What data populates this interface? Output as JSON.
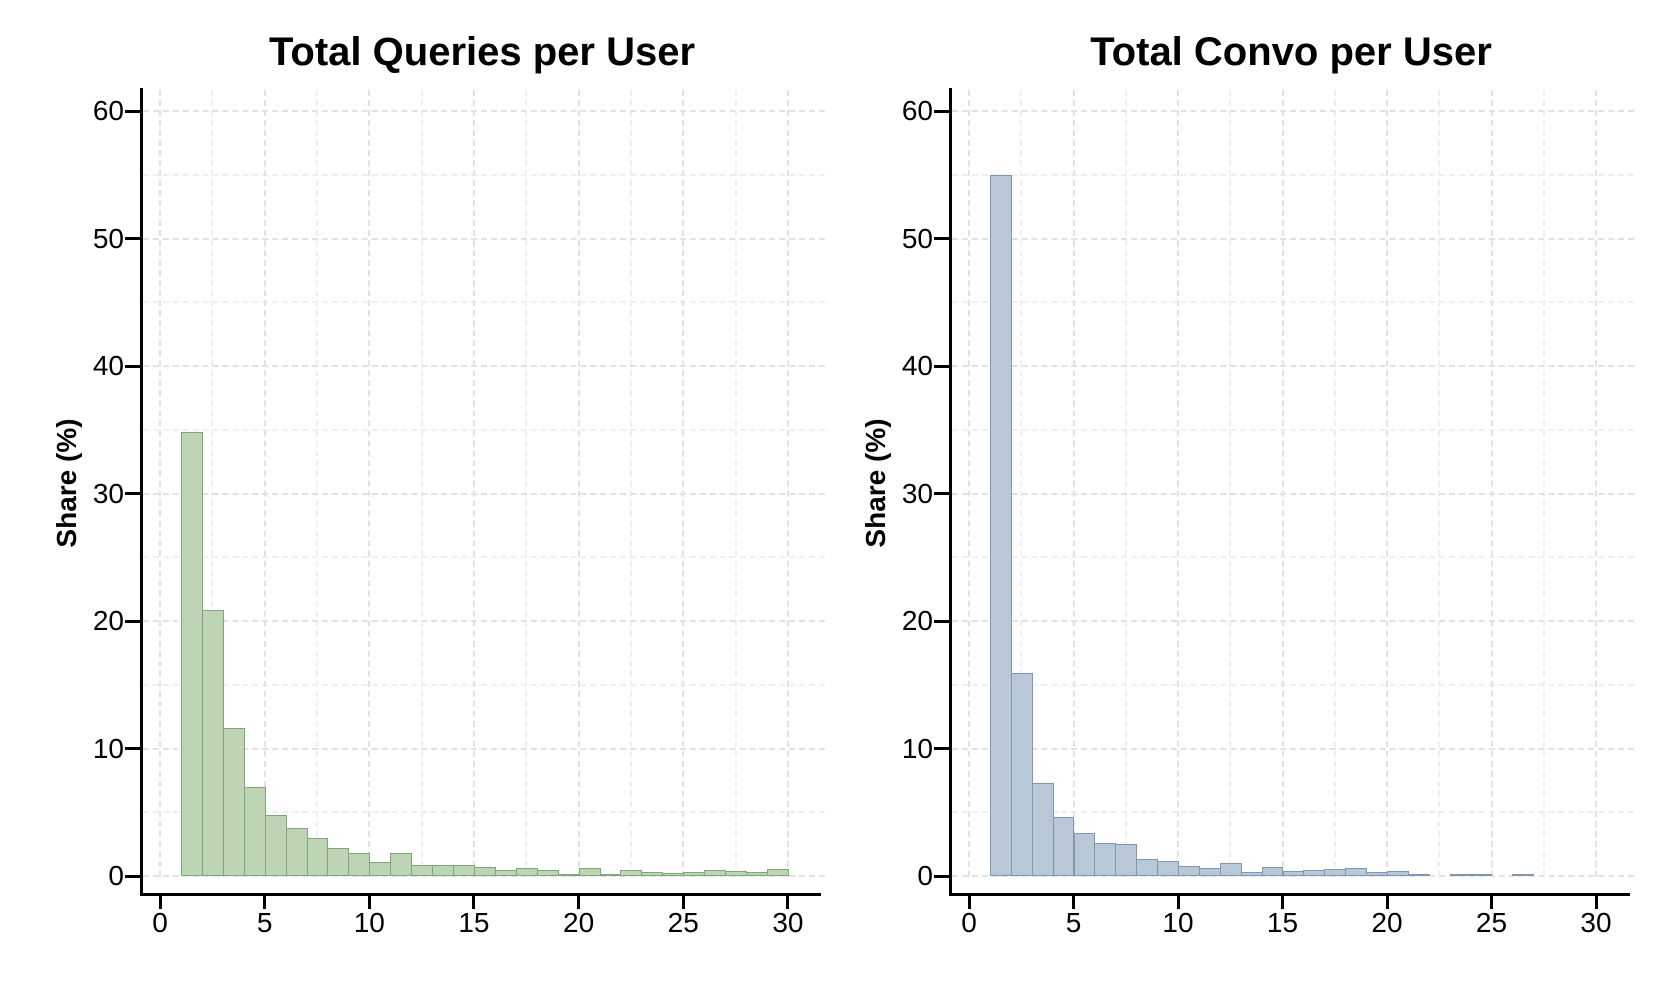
{
  "figure": {
    "background_color": "#ffffff",
    "grid_color_major": "#e2e2e2",
    "grid_color_minor": "#efefef",
    "axis_color": "#000000"
  },
  "chart_data": [
    {
      "type": "bar",
      "subtype": "histogram",
      "title": "Total Queries per User",
      "xlabel": "",
      "ylabel": "Share (%)",
      "bar_fill_color": "#bdd5b5",
      "bar_edge_color": "#7ea77b",
      "bin_start": 1,
      "bin_width": 1,
      "values": [
        34.8,
        20.9,
        11.6,
        7.0,
        4.8,
        3.8,
        3.0,
        2.2,
        1.8,
        1.1,
        1.8,
        0.85,
        0.85,
        0.9,
        0.7,
        0.45,
        0.65,
        0.5,
        0.15,
        0.65,
        0.1,
        0.45,
        0.35,
        0.25,
        0.3,
        0.45,
        0.4,
        0.35,
        0.55
      ],
      "xticks": [
        0,
        5,
        10,
        15,
        20,
        25,
        30
      ],
      "yticks": [
        0,
        10,
        20,
        30,
        40,
        50,
        60
      ],
      "xlim": [
        0,
        30.6
      ],
      "ylim": [
        0,
        61.5
      ],
      "grid": "dashed, major every 10 (y) / 5 (x), minor every 5 (y) / 2.5 (x)",
      "legend": "none"
    },
    {
      "type": "bar",
      "subtype": "histogram",
      "title": "Total Convo per User",
      "xlabel": "",
      "ylabel": "Share (%)",
      "bar_fill_color": "#b8c8d7",
      "bar_edge_color": "#8097af",
      "bin_start": 1,
      "bin_width": 1,
      "values": [
        55.0,
        15.9,
        7.3,
        4.6,
        3.4,
        2.6,
        2.5,
        1.3,
        1.15,
        0.8,
        0.6,
        1.0,
        0.35,
        0.7,
        0.4,
        0.5,
        0.55,
        0.6,
        0.3,
        0.4,
        0.1,
        0,
        0.15,
        0.15,
        0,
        0.15
      ],
      "xticks": [
        0,
        5,
        10,
        15,
        20,
        25,
        30
      ],
      "yticks": [
        0,
        10,
        20,
        30,
        40,
        50,
        60
      ],
      "xlim": [
        0,
        30.6
      ],
      "ylim": [
        0,
        61.5
      ],
      "grid": "dashed, major every 10 (y) / 5 (x), minor every 5 (y) / 2.5 (x)",
      "legend": "none"
    }
  ]
}
